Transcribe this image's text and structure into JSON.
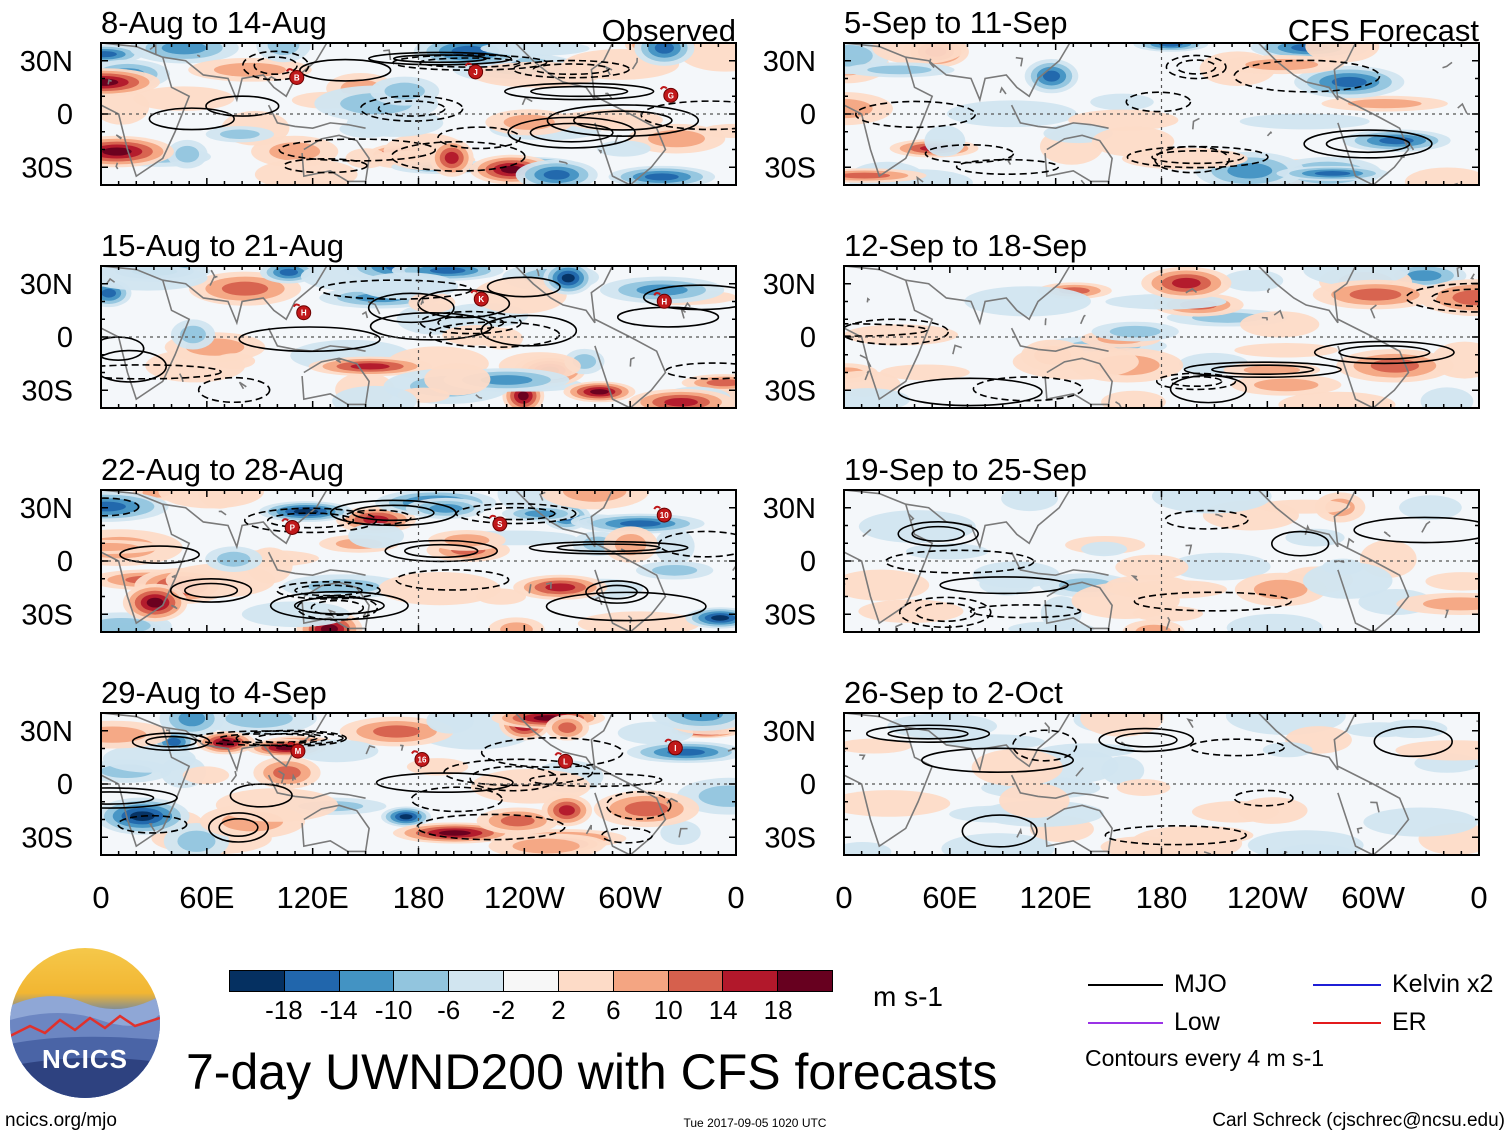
{
  "observed_label": "Observed",
  "forecast_label": "CFS Forecast",
  "lat_labels": [
    "30N",
    "0",
    "30S"
  ],
  "lon_labels": [
    "0",
    "60E",
    "120E",
    "180",
    "120W",
    "60W",
    "0"
  ],
  "observed_panels": [
    {
      "title": "8-Aug to 14-Aug",
      "storms": [
        "B",
        "J",
        "G"
      ]
    },
    {
      "title": "15-Aug to 21-Aug",
      "storms": [
        "H",
        "K",
        "H"
      ]
    },
    {
      "title": "22-Aug to 28-Aug",
      "storms": [
        "P",
        "S",
        "10"
      ]
    },
    {
      "title": "29-Aug to 4-Sep",
      "storms": [
        "M",
        "16",
        "L",
        "I"
      ]
    }
  ],
  "forecast_panels": [
    {
      "title": "5-Sep to 11-Sep"
    },
    {
      "title": "12-Sep to 18-Sep"
    },
    {
      "title": "19-Sep to 25-Sep"
    },
    {
      "title": "26-Sep to 2-Oct"
    }
  ],
  "colorbar": {
    "tick_labels": [
      "-18",
      "-14",
      "-10",
      "-6",
      "-2",
      "2",
      "6",
      "10",
      "14",
      "18"
    ],
    "units": "m s-1",
    "colors": [
      "#053061",
      "#2166ac",
      "#4393c3",
      "#92c5de",
      "#d1e5f0",
      "#f7f7f7",
      "#fddbc7",
      "#f4a582",
      "#d6604d",
      "#b2182b",
      "#67001f"
    ]
  },
  "legend": {
    "items": [
      {
        "label": "MJO",
        "color": "#000000"
      },
      {
        "label": "Kelvin x2",
        "color": "#1f1fd6"
      },
      {
        "label": "Low",
        "color": "#9a33e6"
      },
      {
        "label": "ER",
        "color": "#e31a1c"
      }
    ],
    "contour_note": "Contours every 4 m s-1"
  },
  "main_title": "7-day UWND200 with CFS forecasts",
  "logo_text": "NCICS",
  "url": "ncics.org/mjo",
  "timestamp": "Tue 2017-09-05 1020 UTC",
  "credit": "Carl Schreck (cjschrec@ncsu.edu)"
}
